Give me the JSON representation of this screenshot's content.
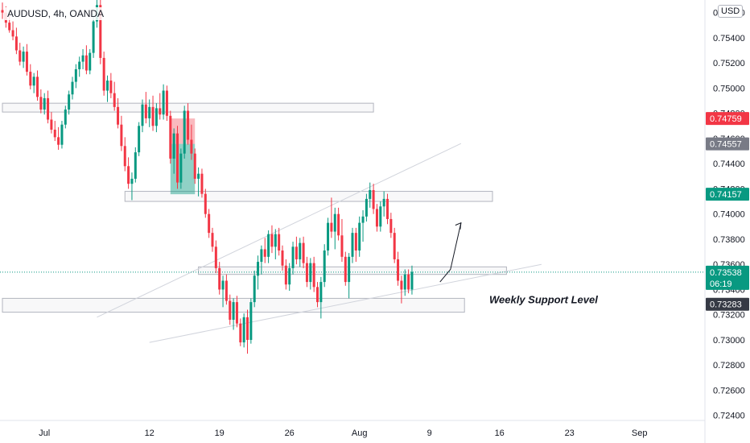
{
  "header": {
    "symbol": "AUDUSD, 4h, OANDA",
    "currency": "USD"
  },
  "chart_data": {
    "type": "candlestick",
    "ylim": [
      0.7236,
      0.757
    ],
    "y_ticks": [
      0.756,
      0.754,
      0.752,
      0.75,
      0.748,
      0.746,
      0.744,
      0.742,
      0.74,
      0.738,
      0.736,
      0.734,
      0.732,
      0.73,
      0.728,
      0.726,
      0.724
    ],
    "y_tick_labels": [
      "0.75600",
      "0.75400",
      "0.75200",
      "0.75000",
      "0.74800",
      "0.74600",
      "0.74400",
      "0.74200",
      "0.74000",
      "0.73800",
      "0.73600",
      "0.73400",
      "0.73200",
      "0.73000",
      "0.72800",
      "0.72600",
      "0.72400"
    ],
    "x_tick_labels": [
      "Jul",
      "12",
      "19",
      "26",
      "Aug",
      "9",
      "16",
      "23",
      "Sep"
    ],
    "x_tick_index": [
      12,
      42,
      62,
      82,
      102,
      122,
      142,
      162,
      182
    ],
    "price_tags": [
      {
        "label": "0.74759",
        "value": 0.74759,
        "color": "#f23645"
      },
      {
        "label": "0.74557",
        "value": 0.74557,
        "color": "#787b86"
      },
      {
        "label": "0.74157",
        "value": 0.74157,
        "color": "#089981"
      },
      {
        "label": "0.73538",
        "value": 0.73538,
        "color": "#089981",
        "sub": "06:19"
      },
      {
        "label": "0.73283",
        "value": 0.73283,
        "color": "#363a45"
      }
    ],
    "annotation": "Weekly Support Level",
    "zones": [
      {
        "from": 0,
        "to": 106,
        "y_top": 0.7488,
        "y_bot": 0.7481
      },
      {
        "from": 35,
        "to": 140,
        "y_top": 0.7418,
        "y_bot": 0.741
      },
      {
        "from": 56,
        "to": 144,
        "y_top": 0.7358,
        "y_bot": 0.7352
      },
      {
        "from": 0,
        "to": 132,
        "y_top": 0.7333,
        "y_bot": 0.7322
      }
    ],
    "position": {
      "from": 48,
      "to": 55,
      "entry": 0.74557,
      "stop": 0.74759,
      "target": 0.74157
    },
    "trendlines": [
      {
        "x1": 27,
        "y1": 0.7318,
        "x2": 131,
        "y2": 0.7456
      },
      {
        "x1": 42,
        "y1": 0.7298,
        "x2": 154,
        "y2": 0.736
      }
    ],
    "projection": [
      [
        125,
        0.7346
      ],
      [
        128,
        0.7356
      ],
      [
        131,
        0.7393
      ]
    ],
    "candles": [
      [
        0.7562,
        0.7568,
        0.7555,
        0.756
      ],
      [
        0.756,
        0.7565,
        0.7548,
        0.7552
      ],
      [
        0.7552,
        0.7558,
        0.7544,
        0.7546
      ],
      [
        0.7546,
        0.7553,
        0.7538,
        0.7541
      ],
      [
        0.7541,
        0.7548,
        0.7527,
        0.753
      ],
      [
        0.753,
        0.7536,
        0.7518,
        0.7521
      ],
      [
        0.7521,
        0.7533,
        0.7516,
        0.7529
      ],
      [
        0.7529,
        0.7535,
        0.751,
        0.7513
      ],
      [
        0.7513,
        0.7519,
        0.7499,
        0.7502
      ],
      [
        0.7502,
        0.7512,
        0.7496,
        0.7509
      ],
      [
        0.7509,
        0.7514,
        0.749,
        0.7493
      ],
      [
        0.7493,
        0.7499,
        0.748,
        0.7483
      ],
      [
        0.7483,
        0.7496,
        0.7479,
        0.7492
      ],
      [
        0.7492,
        0.7498,
        0.7472,
        0.7475
      ],
      [
        0.7475,
        0.7481,
        0.7464,
        0.7467
      ],
      [
        0.7467,
        0.7474,
        0.7458,
        0.7461
      ],
      [
        0.7461,
        0.7469,
        0.7451,
        0.7455
      ],
      [
        0.7455,
        0.7474,
        0.7452,
        0.7471
      ],
      [
        0.7471,
        0.7486,
        0.7468,
        0.7483
      ],
      [
        0.7483,
        0.7498,
        0.7479,
        0.7495
      ],
      [
        0.7495,
        0.7509,
        0.7491,
        0.7505
      ],
      [
        0.7505,
        0.7519,
        0.75,
        0.7515
      ],
      [
        0.7515,
        0.7525,
        0.7509,
        0.7521
      ],
      [
        0.7521,
        0.7531,
        0.7515,
        0.7526
      ],
      [
        0.7526,
        0.7534,
        0.7511,
        0.7514
      ],
      [
        0.7514,
        0.7531,
        0.7511,
        0.7528
      ],
      [
        0.7528,
        0.7559,
        0.7524,
        0.7553
      ],
      [
        0.7553,
        0.7572,
        0.7548,
        0.7566
      ],
      [
        0.7566,
        0.7571,
        0.7519,
        0.7524
      ],
      [
        0.7524,
        0.7529,
        0.7494,
        0.7498
      ],
      [
        0.7498,
        0.751,
        0.7489,
        0.7506
      ],
      [
        0.7506,
        0.7512,
        0.7492,
        0.7496
      ],
      [
        0.7496,
        0.7505,
        0.7482,
        0.7485
      ],
      [
        0.7485,
        0.7492,
        0.7468,
        0.7471
      ],
      [
        0.7471,
        0.7478,
        0.745,
        0.7454
      ],
      [
        0.7454,
        0.7461,
        0.7434,
        0.7438
      ],
      [
        0.7438,
        0.7445,
        0.742,
        0.7424
      ],
      [
        0.7424,
        0.7433,
        0.7411,
        0.7428
      ],
      [
        0.7428,
        0.7453,
        0.7425,
        0.7449
      ],
      [
        0.7449,
        0.7473,
        0.7446,
        0.747
      ],
      [
        0.747,
        0.7491,
        0.7465,
        0.7487
      ],
      [
        0.7487,
        0.7497,
        0.7472,
        0.7476
      ],
      [
        0.7476,
        0.7491,
        0.7469,
        0.7485
      ],
      [
        0.7485,
        0.7494,
        0.7466,
        0.747
      ],
      [
        0.747,
        0.7488,
        0.7465,
        0.7484
      ],
      [
        0.7484,
        0.7496,
        0.7475,
        0.7479
      ],
      [
        0.7479,
        0.7503,
        0.7475,
        0.7498
      ],
      [
        0.7498,
        0.7502,
        0.7474,
        0.7478
      ],
      [
        0.7478,
        0.7482,
        0.744,
        0.7444
      ],
      [
        0.7444,
        0.7468,
        0.7432,
        0.7464
      ],
      [
        0.7464,
        0.747,
        0.742,
        0.7425
      ],
      [
        0.7425,
        0.7452,
        0.742,
        0.7448
      ],
      [
        0.7448,
        0.7486,
        0.7444,
        0.7482
      ],
      [
        0.7482,
        0.7488,
        0.7455,
        0.7459
      ],
      [
        0.7459,
        0.7471,
        0.7443,
        0.7448
      ],
      [
        0.7448,
        0.7452,
        0.7424,
        0.7428
      ],
      [
        0.7428,
        0.7437,
        0.7414,
        0.7432
      ],
      [
        0.7432,
        0.7436,
        0.7413,
        0.7416
      ],
      [
        0.7416,
        0.742,
        0.7397,
        0.74
      ],
      [
        0.74,
        0.7404,
        0.7381,
        0.7385
      ],
      [
        0.7385,
        0.7389,
        0.737,
        0.7374
      ],
      [
        0.7374,
        0.7379,
        0.7353,
        0.7357
      ],
      [
        0.7357,
        0.7362,
        0.7336,
        0.734
      ],
      [
        0.734,
        0.7351,
        0.7326,
        0.7347
      ],
      [
        0.7347,
        0.7352,
        0.7328,
        0.7331
      ],
      [
        0.7331,
        0.7336,
        0.7312,
        0.7316
      ],
      [
        0.7316,
        0.7333,
        0.7308,
        0.733
      ],
      [
        0.733,
        0.7335,
        0.731,
        0.7313
      ],
      [
        0.7313,
        0.7317,
        0.7295,
        0.7298
      ],
      [
        0.7298,
        0.7321,
        0.7294,
        0.7318
      ],
      [
        0.7318,
        0.7324,
        0.7289,
        0.73
      ],
      [
        0.73,
        0.7333,
        0.7297,
        0.733
      ],
      [
        0.733,
        0.7355,
        0.7326,
        0.7351
      ],
      [
        0.7351,
        0.7367,
        0.734,
        0.7362
      ],
      [
        0.7362,
        0.7375,
        0.7352,
        0.7372
      ],
      [
        0.7372,
        0.7381,
        0.7361,
        0.7366
      ],
      [
        0.7366,
        0.7387,
        0.7361,
        0.7384
      ],
      [
        0.7384,
        0.7391,
        0.7369,
        0.7374
      ],
      [
        0.7374,
        0.7388,
        0.7364,
        0.7384
      ],
      [
        0.7384,
        0.7389,
        0.7367,
        0.7371
      ],
      [
        0.7371,
        0.7375,
        0.7355,
        0.7359
      ],
      [
        0.7359,
        0.7364,
        0.734,
        0.7344
      ],
      [
        0.7344,
        0.7361,
        0.7339,
        0.7357
      ],
      [
        0.7357,
        0.7378,
        0.7352,
        0.7374
      ],
      [
        0.7374,
        0.7382,
        0.736,
        0.7364
      ],
      [
        0.7364,
        0.7381,
        0.7358,
        0.7377
      ],
      [
        0.7377,
        0.7382,
        0.7357,
        0.7361
      ],
      [
        0.7361,
        0.7366,
        0.7342,
        0.7346
      ],
      [
        0.7346,
        0.7365,
        0.734,
        0.7361
      ],
      [
        0.7361,
        0.7366,
        0.7338,
        0.7342
      ],
      [
        0.7342,
        0.7346,
        0.7326,
        0.733
      ],
      [
        0.733,
        0.735,
        0.7317,
        0.7346
      ],
      [
        0.7346,
        0.7376,
        0.7342,
        0.7371
      ],
      [
        0.7371,
        0.7397,
        0.7367,
        0.7393
      ],
      [
        0.7393,
        0.7413,
        0.7381,
        0.7386
      ],
      [
        0.7386,
        0.7405,
        0.7372,
        0.74
      ],
      [
        0.74,
        0.7405,
        0.7379,
        0.7383
      ],
      [
        0.7383,
        0.7396,
        0.7362,
        0.7366
      ],
      [
        0.7366,
        0.737,
        0.7343,
        0.7346
      ],
      [
        0.7346,
        0.7369,
        0.7333,
        0.7366
      ],
      [
        0.7366,
        0.7389,
        0.7361,
        0.7385
      ],
      [
        0.7385,
        0.7389,
        0.7362,
        0.7371
      ],
      [
        0.7371,
        0.7398,
        0.7366,
        0.7393
      ],
      [
        0.7393,
        0.7403,
        0.7378,
        0.7398
      ],
      [
        0.7398,
        0.7416,
        0.7394,
        0.7412
      ],
      [
        0.7412,
        0.7425,
        0.7405,
        0.7419
      ],
      [
        0.7419,
        0.7424,
        0.74,
        0.7404
      ],
      [
        0.7404,
        0.7408,
        0.7386,
        0.739
      ],
      [
        0.739,
        0.741,
        0.7386,
        0.7406
      ],
      [
        0.7406,
        0.7418,
        0.7398,
        0.7412
      ],
      [
        0.7412,
        0.7416,
        0.7392,
        0.7396
      ],
      [
        0.7396,
        0.7401,
        0.7381,
        0.7385
      ],
      [
        0.7385,
        0.7389,
        0.7361,
        0.7364
      ],
      [
        0.7364,
        0.737,
        0.7343,
        0.7347
      ],
      [
        0.7347,
        0.7351,
        0.7329,
        0.734
      ],
      [
        0.734,
        0.7356,
        0.7335,
        0.7352
      ],
      [
        0.7352,
        0.7356,
        0.7337,
        0.734
      ],
      [
        0.734,
        0.7359,
        0.7336,
        0.7354
      ]
    ]
  }
}
